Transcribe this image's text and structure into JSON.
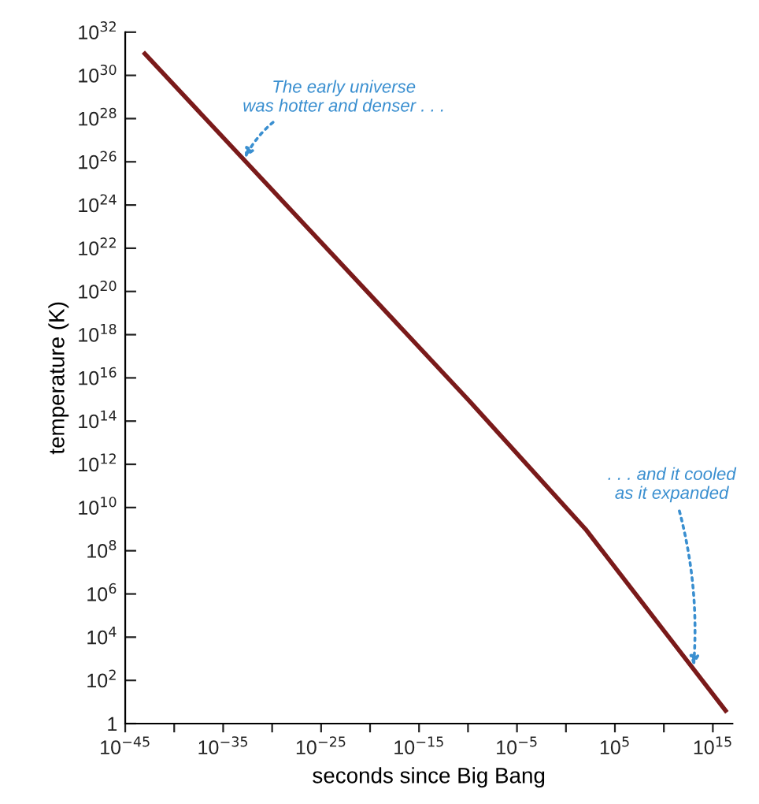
{
  "chart_data": {
    "type": "line",
    "xlabel": "seconds since Big Bang",
    "ylabel": "temperature (K)",
    "log": "xy",
    "grid": false,
    "line_style": "solid",
    "marker": "none",
    "x": [
      1e-43,
      1e-30,
      1e-10,
      100.0,
      10000000000.0,
      2e+16
    ],
    "series": [
      {
        "color": "#7a1a1a",
        "values": [
          1e+31,
          5e+24,
          1000000000000000.0,
          1000000000.0,
          20000.0,
          4
        ]
      }
    ],
    "xlim": [
      1e-45,
      1e+17
    ],
    "ylim": [
      1,
      1e+32
    ],
    "xticks": [
      {
        "value": 1e-45,
        "label": "10$^{−45}$"
      },
      {
        "value": 1e-40,
        "label": null
      },
      {
        "value": 1e-35,
        "label": "10$^{−35}$"
      },
      {
        "value": 1e-30,
        "label": null
      },
      {
        "value": 1e-25,
        "label": "10$^{−25}$"
      },
      {
        "value": 1e-20,
        "label": null
      },
      {
        "value": 1e-15,
        "label": "10$^{−15}$"
      },
      {
        "value": 1e-10,
        "label": null
      },
      {
        "value": 1e-05,
        "label": "10$^{−5}$"
      },
      {
        "value": 1,
        "label": null
      },
      {
        "value": 100000.0,
        "label": "10$^{5}$"
      },
      {
        "value": 10000000000.0,
        "label": null
      },
      {
        "value": 1000000000000000.0,
        "label": "10$^{15}$"
      }
    ],
    "yticks": [
      1,
      {
        "value": 100.0,
        "label": "10$^{2}$"
      },
      {
        "value": 10000.0,
        "label": "10$^{4}$"
      },
      {
        "value": 1000000.0,
        "label": "10$^{6}$"
      },
      {
        "value": 100000000.0,
        "label": "10$^{8}$"
      },
      {
        "value": 10000000000.0,
        "label": "10$^{10}$"
      },
      {
        "value": 1000000000000.0,
        "label": "10$^{12}$"
      },
      {
        "value": 100000000000000.0,
        "label": "10$^{14}$"
      },
      {
        "value": 1e+16,
        "label": "10$^{16}$"
      },
      {
        "value": 1e+18,
        "label": "10$^{18}$"
      },
      {
        "value": 1e+20,
        "label": "10$^{20}$"
      },
      {
        "value": 1e+22,
        "label": "10$^{22}$"
      },
      {
        "value": 1e+24,
        "label": "10$^{24}$"
      },
      {
        "value": 1e+26,
        "label": "10$^{26}$"
      },
      {
        "value": 1e+28,
        "label": "10$^{28}$"
      },
      {
        "value": 1e+30,
        "label": "10$^{30}$"
      },
      {
        "value": 1e+32,
        "label": "10$^{32}$"
      }
    ],
    "annotations": [
      {
        "text": "The early universe\nwas hotter and denser . . .",
        "x": 1e-33,
        "y": 1e+26
      },
      {
        "text": ". . . and it cooled\nas it expanded",
        "x": 10000000000000.0,
        "y": 300.0
      }
    ]
  }
}
